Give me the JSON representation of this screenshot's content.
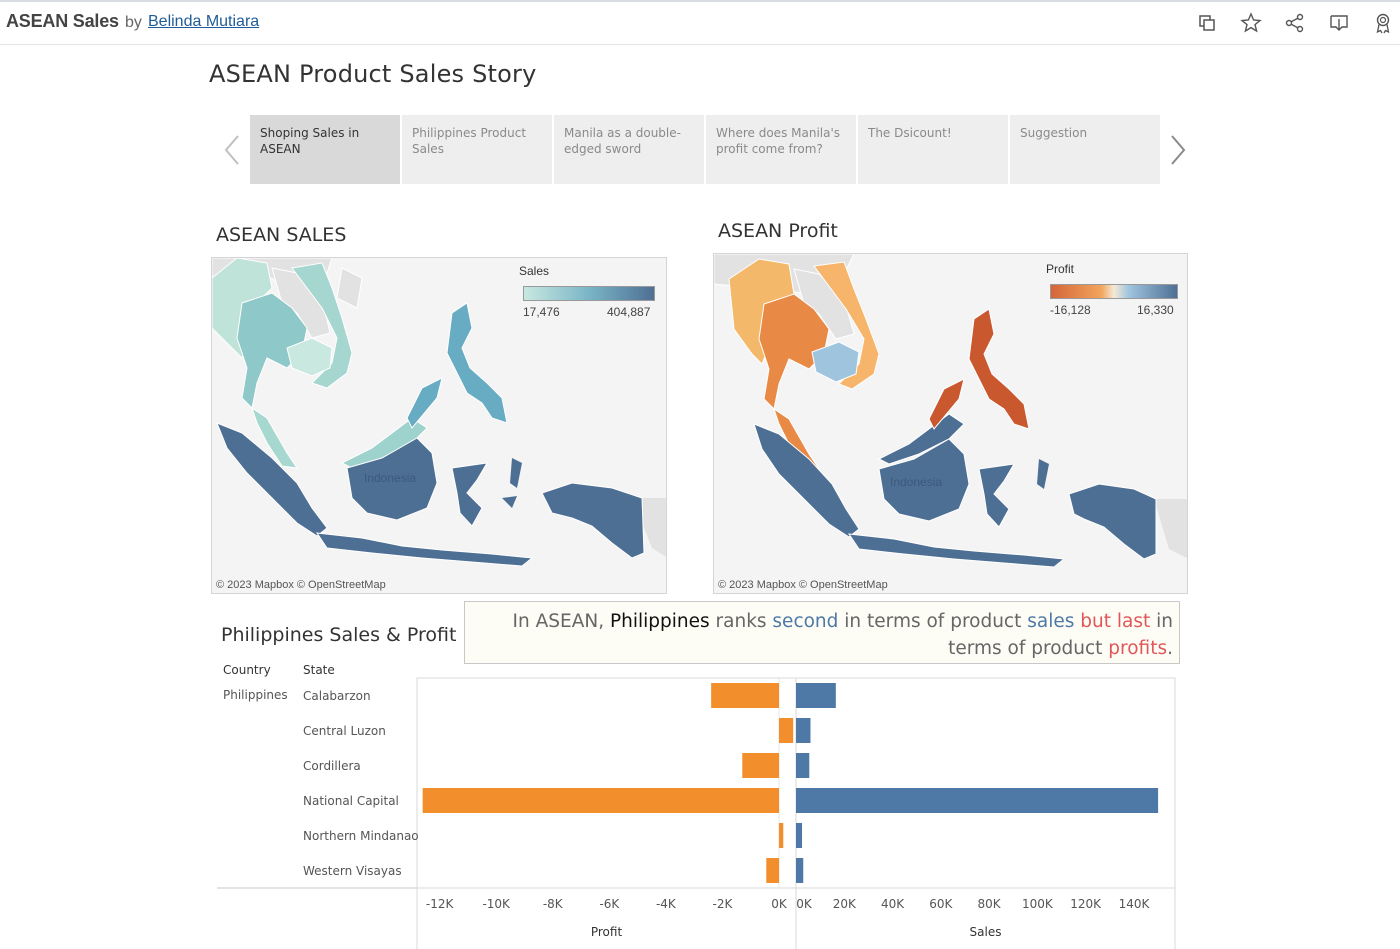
{
  "header": {
    "viz_title": "ASEAN Sales",
    "by_label": "by",
    "author": "Belinda Mutiara",
    "icons": [
      "copy-icon",
      "star-icon",
      "share-icon",
      "download-icon",
      "award-icon"
    ]
  },
  "story": {
    "title": "ASEAN Product Sales Story",
    "points": [
      {
        "label": "Shoping Sales in ASEAN",
        "active": true
      },
      {
        "label": "Philippines Product Sales",
        "active": false
      },
      {
        "label": "Manila as a double-edged sword",
        "active": false
      },
      {
        "label": "Where does Manila's profit come from?",
        "active": false
      },
      {
        "label": "The Dsicount!",
        "active": false
      },
      {
        "label": "Suggestion",
        "active": false
      }
    ]
  },
  "sales_map": {
    "title": "ASEAN SALES",
    "legend_title": "Sales",
    "legend_min": "17,476",
    "legend_max": "404,887",
    "color_low": "#c8e8e0",
    "color_high": "#4e6f94",
    "country_label": "Indonesia",
    "credit": "© 2023 Mapbox  © OpenStreetMap"
  },
  "profit_map": {
    "title": "ASEAN Profit",
    "legend_title": "Profit",
    "legend_min": "-16,128",
    "legend_max": "16,330",
    "color_low": "#d5653a",
    "color_mid": "#f5e9d6",
    "color_high": "#4e6f94",
    "country_label": "Indonesia",
    "credit": "© 2023 Mapbox  © OpenStreetMap"
  },
  "callout": {
    "p1": "In ASEAN, ",
    "p2": "Philippines",
    "p3": " ranks ",
    "p4": "second",
    "p5": " in terms of product ",
    "p6": "sales",
    "p7": " but last",
    "p8": " in terms of product ",
    "p9": "profits",
    "p10": "."
  },
  "bar_section": {
    "title": "Philippines Sales & Profit",
    "col_country": "Country",
    "col_state": "State",
    "country": "Philippines"
  },
  "chart_data": {
    "type": "bar",
    "orientation": "horizontal",
    "categories": [
      "Calabarzon",
      "Central Luzon",
      "Cordillera",
      "National Capital",
      "Northern Mindanao",
      "Western Visayas"
    ],
    "series": [
      {
        "name": "Profit",
        "values": [
          -2400,
          500,
          -1300,
          -12600,
          150,
          -450
        ],
        "color": "#f28e2b"
      },
      {
        "name": "Sales",
        "values": [
          16500,
          6000,
          5500,
          150000,
          2500,
          3000
        ],
        "color": "#4e79a7"
      }
    ],
    "profit_axis": {
      "label": "Profit",
      "range": [
        -12800,
        600
      ],
      "ticks": [
        -12000,
        -10000,
        -8000,
        -6000,
        -4000,
        -2000,
        0
      ],
      "tick_labels": [
        "-12K",
        "-10K",
        "-8K",
        "-6K",
        "-4K",
        "-2K",
        "0K"
      ]
    },
    "sales_axis": {
      "label": "Sales",
      "range": [
        0,
        157000
      ],
      "ticks": [
        0,
        20000,
        40000,
        60000,
        80000,
        100000,
        120000,
        140000
      ],
      "tick_labels": [
        "0K",
        "20K",
        "40K",
        "60K",
        "80K",
        "100K",
        "120K",
        "140K"
      ]
    }
  }
}
